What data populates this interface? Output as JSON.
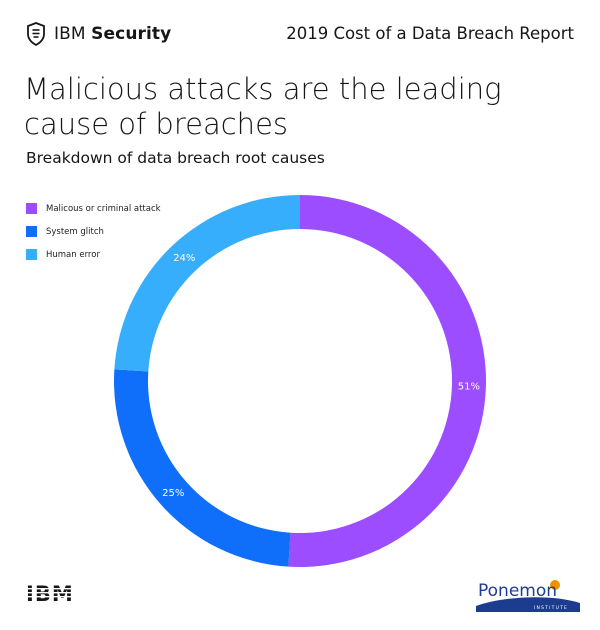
{
  "header": {
    "brand_prefix": "IBM",
    "brand_name": "Security",
    "report_title": "2019 Cost of a Data Breach Report"
  },
  "headline": "Malicious attacks are the leading cause of breaches",
  "subtitle": "Breakdown of data breach root causes",
  "icons": {
    "brand": "shield-lock-icon",
    "footer_left": "ibm-striped-logo",
    "footer_right": "ponemon-institute-logo"
  },
  "footer": {
    "ibm_logo_text": "IBM",
    "ponemon_text": "Ponemon",
    "ponemon_sub": "INSTITUTE"
  },
  "chart_data": {
    "type": "pie",
    "style": "donut",
    "title": "",
    "categories": [
      "Malicous or criminal attack",
      "System glitch",
      "Human error"
    ],
    "values": [
      51,
      25,
      24
    ],
    "labels": [
      "51%",
      "25%",
      "24%"
    ],
    "colors": [
      "#9b4dff",
      "#0f6ffa",
      "#36aefc"
    ],
    "legend": {
      "position": "top-left"
    },
    "start": "12 o'clock",
    "direction": "clockwise"
  }
}
